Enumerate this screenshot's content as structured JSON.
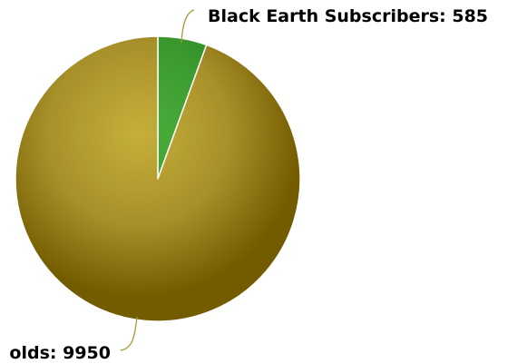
{
  "chart_data": {
    "type": "pie",
    "title": "",
    "slices": [
      {
        "label": "Black Earth Subscribers: 585",
        "name": "Black Earth Subscribers",
        "value": 585,
        "color": "#3a9a2e",
        "color_light": "#4caf3c",
        "color_dark": "#2a7a20"
      },
      {
        "label": "olds: 9950",
        "name": "olds",
        "value": 9950,
        "color": "#a8902a",
        "color_light": "#c6b03a",
        "color_dark": "#735c00"
      }
    ],
    "start_angle": "12 o'clock",
    "direction": "clockwise",
    "legend": "none",
    "label_style": "outside with leader lines"
  }
}
